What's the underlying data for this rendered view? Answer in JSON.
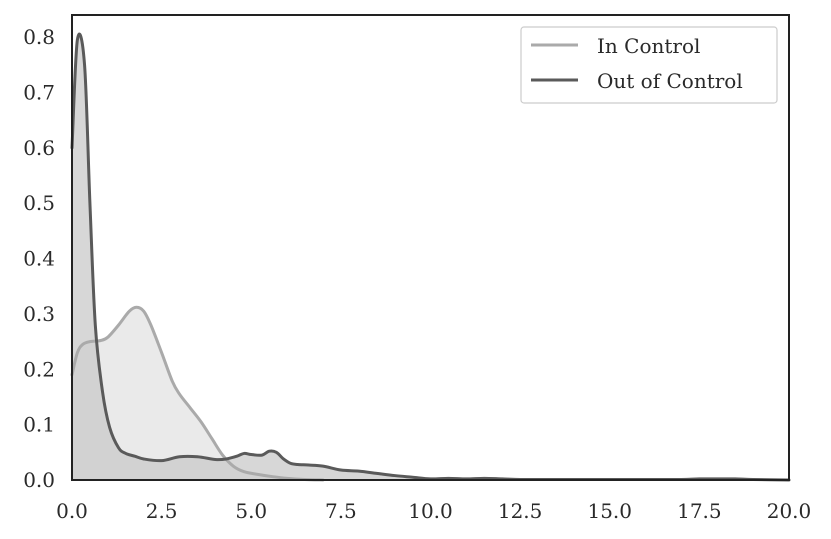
{
  "chart_data": {
    "type": "area",
    "title": "",
    "xlabel": "",
    "ylabel": "",
    "xlim": [
      0,
      20
    ],
    "ylim": [
      0,
      0.84
    ],
    "xticks": [
      "0.0",
      "2.5",
      "5.0",
      "7.5",
      "10.0",
      "12.5",
      "15.0",
      "17.5",
      "20.0"
    ],
    "yticks": [
      "0.0",
      "0.1",
      "0.2",
      "0.3",
      "0.4",
      "0.5",
      "0.6",
      "0.7",
      "0.8"
    ],
    "grid": false,
    "legend_position": "top-right",
    "series": [
      {
        "name": "In Control",
        "color": "#aaaaaa",
        "fill": "#e6e6e6",
        "x": [
          0,
          0.15,
          0.3,
          0.5,
          0.8,
          1.0,
          1.3,
          1.6,
          1.8,
          2.0,
          2.2,
          2.5,
          2.8,
          3.0,
          3.3,
          3.6,
          3.9,
          4.2,
          4.5,
          4.8,
          5.2,
          5.6,
          6.0,
          6.5,
          7.0
        ],
        "values": [
          0.19,
          0.23,
          0.245,
          0.25,
          0.252,
          0.258,
          0.28,
          0.305,
          0.312,
          0.305,
          0.28,
          0.23,
          0.178,
          0.155,
          0.13,
          0.105,
          0.075,
          0.045,
          0.025,
          0.015,
          0.01,
          0.006,
          0.003,
          0.001,
          0.0
        ]
      },
      {
        "name": "Out of Control",
        "color": "#5a5a5a",
        "fill": "#c9c9c9",
        "x": [
          0,
          0.15,
          0.35,
          0.5,
          0.65,
          0.85,
          1.05,
          1.3,
          1.5,
          1.75,
          2.0,
          2.5,
          3.0,
          3.5,
          4.0,
          4.3,
          4.6,
          4.8,
          5.0,
          5.3,
          5.5,
          5.7,
          5.9,
          6.1,
          6.3,
          6.6,
          7.0,
          7.5,
          8.0,
          8.5,
          9.0,
          9.5,
          10.0,
          10.5,
          11.0,
          11.5,
          12.0,
          12.5,
          13.0,
          14.0,
          15.0,
          16.0,
          17.0,
          17.5,
          18.0,
          18.5,
          19.0,
          20.0
        ],
        "values": [
          0.6,
          0.795,
          0.75,
          0.5,
          0.28,
          0.16,
          0.095,
          0.058,
          0.048,
          0.043,
          0.038,
          0.035,
          0.042,
          0.042,
          0.037,
          0.038,
          0.043,
          0.048,
          0.046,
          0.045,
          0.052,
          0.05,
          0.038,
          0.03,
          0.028,
          0.027,
          0.025,
          0.018,
          0.016,
          0.012,
          0.008,
          0.005,
          0.002,
          0.003,
          0.002,
          0.003,
          0.002,
          0.001,
          0.001,
          0.001,
          0.001,
          0.001,
          0.001,
          0.002,
          0.002,
          0.002,
          0.001,
          0.0
        ]
      }
    ]
  }
}
